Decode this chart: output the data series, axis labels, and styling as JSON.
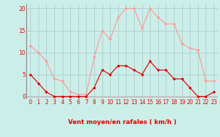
{
  "hours": [
    0,
    1,
    2,
    3,
    4,
    5,
    6,
    7,
    8,
    9,
    10,
    11,
    12,
    13,
    14,
    15,
    16,
    17,
    18,
    19,
    20,
    21,
    22,
    23
  ],
  "wind_avg": [
    5,
    3,
    1,
    0,
    0,
    0,
    0,
    0,
    2,
    6,
    5,
    7,
    7,
    6,
    5,
    8,
    6,
    6,
    4,
    4,
    2,
    0,
    0,
    1
  ],
  "wind_gust": [
    11.5,
    10,
    8,
    4,
    3.5,
    1,
    0.5,
    0.5,
    9,
    15,
    13,
    18,
    20,
    20,
    15.5,
    20,
    18,
    16.5,
    16.5,
    12,
    11,
    10.5,
    3.5,
    3.5
  ],
  "avg_color": "#dd0000",
  "gust_color": "#ff9999",
  "bg_color": "#cceee8",
  "grid_color": "#aacccc",
  "axis_color": "#dd0000",
  "spine_color": "#888888",
  "xlabel": "Vent moyen/en rafales ( km/h )",
  "ylim": [
    -0.5,
    21
  ],
  "xlim": [
    -0.5,
    23.5
  ],
  "yticks": [
    0,
    5,
    10,
    15,
    20
  ],
  "xlabel_fontsize": 6.5,
  "tick_fontsize": 5.5
}
